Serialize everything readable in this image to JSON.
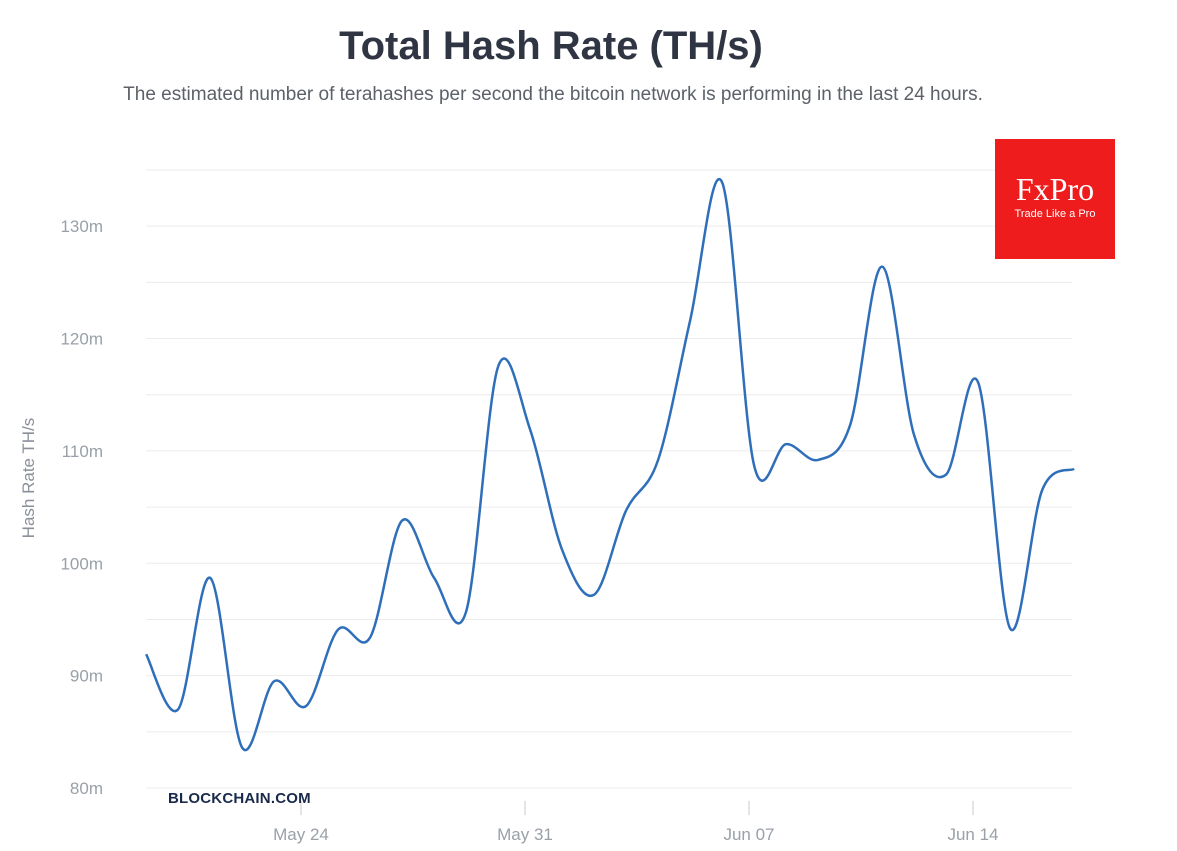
{
  "chart_data": {
    "type": "line",
    "title": "Total Hash Rate (TH/s)",
    "subtitle": "The estimated number of terahashes per second the bitcoin network is performing in the last 24 hours.",
    "xlabel": "",
    "ylabel": "Hash Rate TH/s",
    "x_unit": "days relative to May 24",
    "xlim": [
      -4.84,
      24.3
    ],
    "ylim": [
      80,
      135
    ],
    "grid": true,
    "y_ticks": [
      {
        "v": 80,
        "label": "80m"
      },
      {
        "v": 90,
        "label": "90m"
      },
      {
        "v": 100,
        "label": "100m"
      },
      {
        "v": 110,
        "label": "110m"
      },
      {
        "v": 120,
        "label": "120m"
      },
      {
        "v": 130,
        "label": "130m"
      }
    ],
    "x_ticks": [
      {
        "v": 0,
        "label": "May 24"
      },
      {
        "v": 7,
        "label": "May 31"
      },
      {
        "v": 14,
        "label": "Jun 07"
      },
      {
        "v": 21,
        "label": "Jun 14"
      }
    ],
    "series": [
      {
        "name": "Hash Rate",
        "color": "#2f6fba",
        "x_start": -4.84,
        "x_step": 1,
        "values_millions": [
          91.9,
          87.0,
          98.7,
          83.6,
          89.5,
          87.3,
          94.1,
          93.4,
          103.8,
          98.7,
          95.7,
          117.5,
          111.9,
          101.2,
          97.2,
          104.7,
          109.2,
          121.6,
          133.9,
          108.7,
          110.6,
          109.2,
          112.3,
          126.4,
          111.4,
          107.9,
          116.1,
          94.2,
          106.5,
          108.4
        ]
      }
    ]
  },
  "watermark": "BLOCKCHAIN.COM",
  "logo": {
    "name": "FxPro",
    "tagline": "Trade Like a Pro",
    "color": "#ee1c1c"
  }
}
